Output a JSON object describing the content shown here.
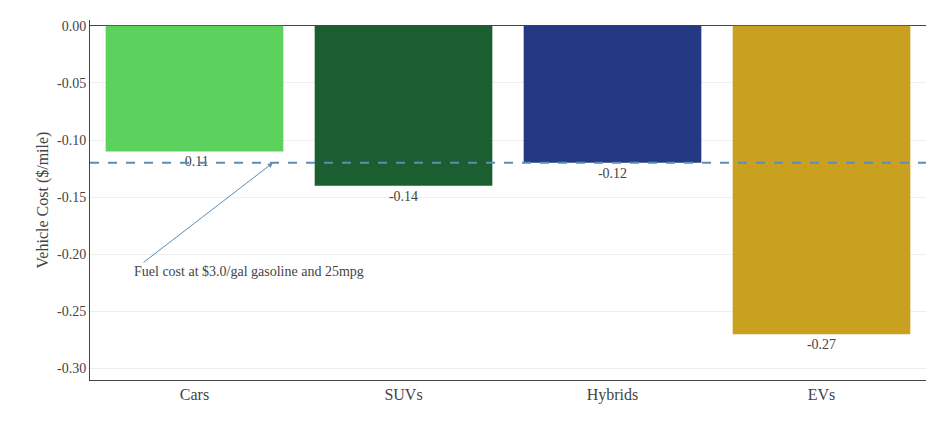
{
  "chart_data": {
    "type": "bar",
    "categories": [
      "Cars",
      "SUVs",
      "Hybrids",
      "EVs"
    ],
    "values": [
      -0.11,
      -0.14,
      -0.12,
      -0.27
    ],
    "colors": [
      "#5DD15D",
      "#1B5E2F",
      "#253882",
      "#C9A020"
    ],
    "ylabel": "Vehicle Cost ($/mile)",
    "ylim": [
      -0.31,
      0.005
    ],
    "yticks": [
      {
        "value": 0,
        "label": "0.00"
      },
      -0.05,
      {
        "value": -0.1,
        "label": "-0.10"
      },
      -0.15,
      {
        "value": -0.2,
        "label": "-0.20"
      },
      -0.25,
      {
        "value": -0.3,
        "label": "-0.30"
      }
    ],
    "grid": true,
    "data_labels": true,
    "reference_line": {
      "y": -0.12,
      "color": "#5B8DB8",
      "line_style": "dashed"
    },
    "annotation": "Fuel cost at $3.0/gal gasoline and 25mpg"
  }
}
